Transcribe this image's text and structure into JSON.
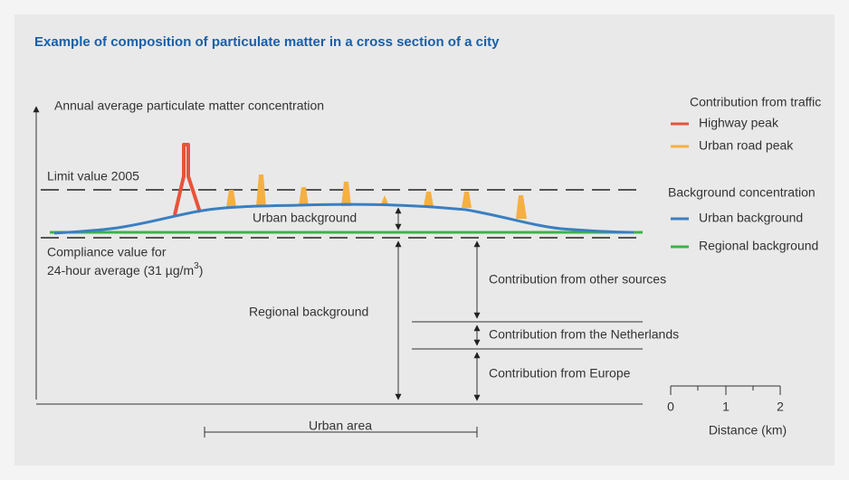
{
  "title": "Example of composition of particulate matter in a cross section of a city",
  "y_axis_label": "Annual average particulate matter concentration",
  "limit_label": "Limit value 2005",
  "compliance_label": {
    "line1": "Compliance value for",
    "line2": "24-hour average (31 µg/m",
    "superscript": "3",
    "close": ")"
  },
  "urban_background_label": "Urban background",
  "regional_background_label": "Regional background",
  "contributions": [
    "Contribution from other sources",
    "Contribution from the Netherlands",
    "Contribution from Europe"
  ],
  "urban_area_label": "Urban area",
  "scale": {
    "ticks": [
      "0",
      "1",
      "2"
    ],
    "label": "Distance (km)"
  },
  "legend": [
    {
      "heading": "Contribution from traffic",
      "items": [
        {
          "label": "Highway peak",
          "color": "#e8533a"
        },
        {
          "label": "Urban road peak",
          "color": "#f5b041"
        }
      ]
    },
    {
      "heading": "Background concentration",
      "items": [
        {
          "label": "Urban background",
          "color": "#3a7fc1"
        },
        {
          "label": "Regional background",
          "color": "#3db24a"
        }
      ]
    }
  ]
}
